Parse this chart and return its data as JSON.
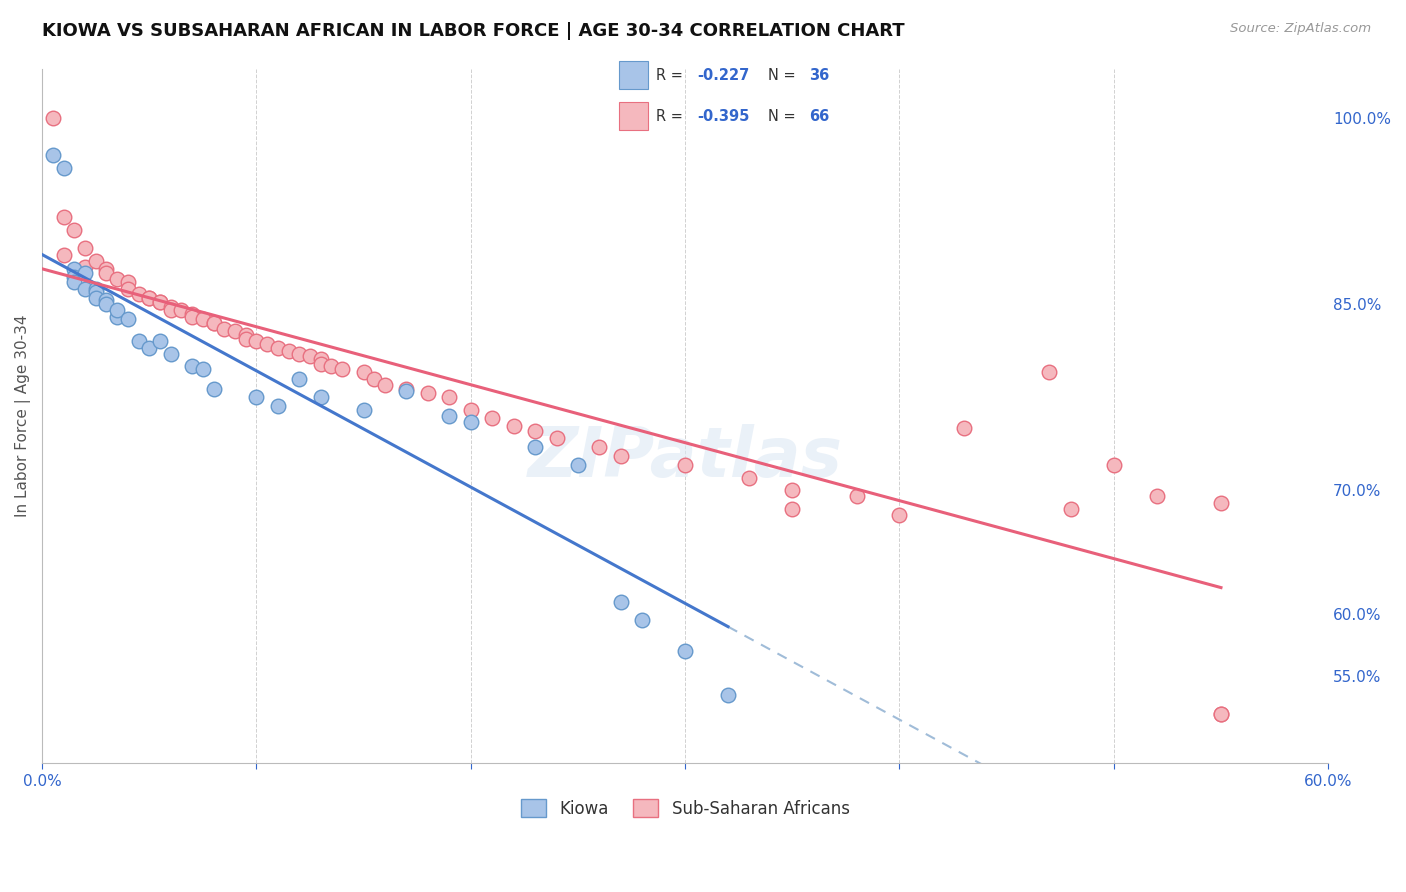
{
  "title": "KIOWA VS SUBSAHARAN AFRICAN IN LABOR FORCE | AGE 30-34 CORRELATION CHART",
  "source": "Source: ZipAtlas.com",
  "ylabel": "In Labor Force | Age 30-34",
  "kiowa_color": "#a8c4e8",
  "kiowa_edge_color": "#6699cc",
  "ssa_color": "#f5b8be",
  "ssa_edge_color": "#e87080",
  "trendline_kiowa_color": "#4477cc",
  "trendline_ssa_color": "#e8607a",
  "trendline_dashed_color": "#a0bcd8",
  "R_kiowa": -0.227,
  "N_kiowa": 36,
  "R_ssa": -0.395,
  "N_ssa": 66,
  "background_color": "#ffffff",
  "grid_color": "#cccccc",
  "kiowa_x": [
    0.5,
    1.5,
    1.5,
    1.5,
    2.0,
    2.0,
    2.5,
    2.5,
    2.5,
    3.0,
    3.0,
    3.5,
    3.5,
    4.0,
    4.5,
    5.0,
    5.5,
    6.0,
    7.0,
    7.5,
    8.0,
    10.0,
    11.0,
    12.0,
    13.0,
    15.0,
    17.0,
    19.0,
    20.0,
    23.0,
    25.0,
    27.0,
    28.0,
    30.0,
    32.0,
    1.0
  ],
  "kiowa_y": [
    97.0,
    87.8,
    87.2,
    86.8,
    86.2,
    87.5,
    86.2,
    86.0,
    85.5,
    85.3,
    85.0,
    84.0,
    84.5,
    83.8,
    82.0,
    81.5,
    82.0,
    81.0,
    80.0,
    79.8,
    78.2,
    77.5,
    76.8,
    79.0,
    77.5,
    76.5,
    78.0,
    76.0,
    75.5,
    73.5,
    72.0,
    61.0,
    59.5,
    57.0,
    53.5,
    96.0
  ],
  "ssa_x": [
    0.5,
    1.0,
    1.5,
    2.0,
    2.0,
    2.5,
    3.0,
    3.0,
    3.5,
    4.0,
    4.0,
    4.5,
    5.0,
    5.0,
    5.5,
    5.5,
    6.0,
    6.0,
    6.5,
    7.0,
    7.0,
    7.5,
    8.0,
    8.0,
    8.5,
    9.0,
    9.5,
    9.5,
    10.0,
    10.5,
    11.0,
    11.5,
    12.0,
    12.5,
    13.0,
    13.0,
    13.5,
    14.0,
    15.0,
    15.5,
    16.0,
    17.0,
    18.0,
    19.0,
    20.0,
    21.0,
    22.0,
    23.0,
    24.0,
    26.0,
    27.0,
    30.0,
    33.0,
    35.0,
    38.0,
    43.0,
    47.0,
    50.0,
    52.0,
    55.0,
    35.0,
    40.0,
    48.0,
    55.0,
    1.0,
    55.0
  ],
  "ssa_y": [
    100.0,
    92.0,
    91.0,
    89.5,
    88.0,
    88.5,
    87.8,
    87.5,
    87.0,
    86.8,
    86.2,
    85.8,
    85.5,
    85.5,
    85.2,
    85.2,
    84.8,
    84.5,
    84.5,
    84.2,
    84.0,
    83.8,
    83.5,
    83.5,
    83.0,
    82.8,
    82.5,
    82.2,
    82.0,
    81.8,
    81.5,
    81.2,
    81.0,
    80.8,
    80.6,
    80.2,
    80.0,
    79.8,
    79.5,
    79.0,
    78.5,
    78.2,
    77.8,
    77.5,
    76.5,
    75.8,
    75.2,
    74.8,
    74.2,
    73.5,
    72.8,
    72.0,
    71.0,
    70.0,
    69.5,
    75.0,
    79.5,
    72.0,
    69.5,
    69.0,
    68.5,
    68.0,
    68.5,
    52.0,
    89.0,
    52.0
  ],
  "xlim": [
    0,
    60
  ],
  "ylim": [
    48,
    104
  ],
  "yticks": [
    55.0,
    60.0,
    70.0,
    85.0,
    100.0
  ],
  "xtick_labels_show": [
    "0.0%",
    "60.0%"
  ],
  "xtick_positions": [
    0,
    10,
    20,
    30,
    40,
    50,
    60
  ]
}
